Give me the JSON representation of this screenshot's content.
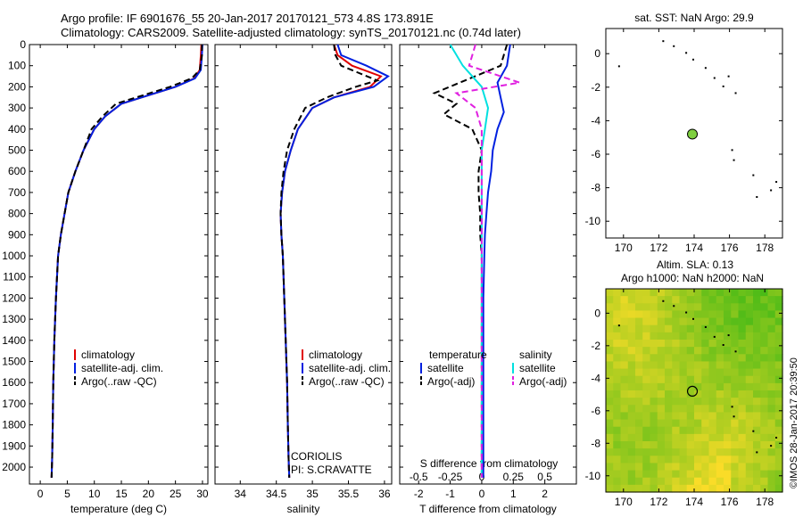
{
  "title_line1": "Argo profile: IF 6901676_55 20-Jan-2017 20170121_573 4.8S 173.891E",
  "title_line2": "Climatology: CARS2009. Satellite-adjusted climatology: synTS_20170121.nc (0.74d later)",
  "timestamp": "©IMOS 28-Jan-2017 20:39:50",
  "colors": {
    "red": "#e00000",
    "blue": "#0020e0",
    "black": "#000000",
    "cyan": "#00e0e0",
    "magenta": "#e020e0"
  },
  "chart_data": [
    {
      "id": "temperature",
      "type": "line",
      "xlabel": "temperature (deg C)",
      "xlim": [
        -2,
        31
      ],
      "ylim": [
        2080,
        0
      ],
      "xticks": [
        0,
        5,
        10,
        15,
        20,
        25,
        30
      ],
      "yticks": [
        0,
        100,
        200,
        300,
        400,
        500,
        600,
        700,
        800,
        900,
        1000,
        1100,
        1200,
        1300,
        1400,
        1500,
        1600,
        1700,
        1800,
        1900,
        2000
      ],
      "legend": [
        "climatology",
        "satellite-adj. clim.",
        "Argo(..raw -QC)"
      ],
      "series": [
        {
          "name": "climatology",
          "color": "red",
          "dash": false,
          "x": [
            29.8,
            29.7,
            29.5,
            28.5,
            25,
            20,
            15,
            12,
            10,
            8,
            6.5,
            5.2,
            4.5,
            3.8,
            3.3,
            2.9,
            2.6,
            2.4,
            2.3,
            2.2,
            2.1
          ],
          "y": [
            0,
            50,
            120,
            160,
            200,
            240,
            280,
            340,
            400,
            500,
            600,
            700,
            800,
            900,
            1000,
            1200,
            1400,
            1600,
            1800,
            1950,
            2050
          ]
        },
        {
          "name": "satellite-adj. clim.",
          "color": "blue",
          "dash": false,
          "x": [
            30,
            29.9,
            29.7,
            28.6,
            25,
            20,
            15,
            12,
            10,
            8,
            6.5,
            5.2,
            4.5,
            3.8,
            3.3,
            2.9,
            2.6,
            2.4,
            2.3,
            2.2,
            2.1
          ],
          "y": [
            0,
            50,
            120,
            160,
            200,
            240,
            280,
            340,
            400,
            500,
            600,
            700,
            800,
            900,
            1000,
            1200,
            1400,
            1600,
            1800,
            1950,
            2050
          ]
        },
        {
          "name": "Argo(..raw -QC)",
          "color": "black",
          "dash": true,
          "x": [
            29.9,
            29.9,
            29.5,
            28,
            24,
            19,
            14,
            11.5,
            9.5,
            8,
            6.5,
            5.2,
            4.5,
            3.8,
            3.3,
            2.9,
            2.6,
            2.4,
            2.3,
            2.2,
            2.1
          ],
          "y": [
            0,
            50,
            120,
            160,
            200,
            240,
            280,
            340,
            400,
            500,
            600,
            700,
            800,
            900,
            1000,
            1200,
            1400,
            1600,
            1800,
            1950,
            2050
          ]
        }
      ]
    },
    {
      "id": "salinity",
      "type": "line",
      "xlabel": "salinity",
      "xlim": [
        33.65,
        36.1
      ],
      "ylim": [
        2080,
        0
      ],
      "xticks": [
        34,
        34.5,
        35,
        35.5,
        36
      ],
      "legend": [
        "climatology",
        "satellite-adj. clim.",
        "Argo(..raw -QC)"
      ],
      "annotation": [
        "CORIOLIS",
        "PI: S.CRAVATTE"
      ],
      "series": [
        {
          "name": "climatology",
          "color": "red",
          "dash": false,
          "x": [
            35.3,
            35.35,
            35.55,
            35.95,
            35.8,
            35.3,
            35.0,
            34.8,
            34.7,
            34.62,
            34.58,
            34.56,
            34.57,
            34.59,
            34.61,
            34.63,
            34.65,
            34.66,
            34.67,
            34.68
          ],
          "y": [
            0,
            50,
            100,
            150,
            200,
            250,
            300,
            400,
            500,
            600,
            700,
            800,
            900,
            1000,
            1200,
            1400,
            1600,
            1800,
            1950,
            2050
          ]
        },
        {
          "name": "satellite-adj. clim.",
          "color": "blue",
          "dash": false,
          "x": [
            35.35,
            35.4,
            35.75,
            36.05,
            35.85,
            35.3,
            35.0,
            34.8,
            34.7,
            34.62,
            34.58,
            34.56,
            34.57,
            34.59,
            34.61,
            34.63,
            34.65,
            34.66,
            34.67,
            34.68
          ],
          "y": [
            0,
            50,
            100,
            150,
            200,
            250,
            300,
            400,
            500,
            600,
            700,
            800,
            900,
            1000,
            1200,
            1400,
            1600,
            1800,
            1950,
            2050
          ]
        },
        {
          "name": "Argo(..raw -QC)",
          "color": "black",
          "dash": true,
          "x": [
            35.3,
            35.32,
            35.4,
            35.9,
            35.6,
            35.2,
            34.9,
            34.75,
            34.65,
            34.6,
            34.57,
            34.56,
            34.57,
            34.59,
            34.61,
            34.63,
            34.65,
            34.66,
            34.67,
            34.68
          ],
          "y": [
            0,
            50,
            100,
            170,
            200,
            250,
            300,
            400,
            500,
            600,
            700,
            800,
            900,
            1000,
            1200,
            1400,
            1600,
            1800,
            1950,
            2050
          ]
        }
      ]
    },
    {
      "id": "difference",
      "type": "line",
      "xlabel": "T difference from climatology",
      "top_label": "S difference from climatology",
      "xlim": [
        -2.6,
        3.0
      ],
      "ylim": [
        2080,
        0
      ],
      "xticks": [
        -2,
        -1,
        0,
        1,
        2
      ],
      "top_ticks": [
        {
          "label": "-0.5",
          "value": -2
        },
        {
          "label": "-0.25",
          "value": -1
        },
        {
          "label": "0",
          "value": 0
        },
        {
          "label": "0.25",
          "value": 1
        },
        {
          "label": "0.5",
          "value": 2
        }
      ],
      "legend_left_title": "temperature",
      "legend_right_title": "salinity",
      "legend": [
        "satellite",
        "Argo(-adj)",
        "satellite",
        "Argo(-adj)"
      ],
      "series": [
        {
          "name": "temperature satellite",
          "color": "blue",
          "dash": false,
          "x": [
            0.9,
            0.8,
            0.5,
            0.6,
            0.7,
            0.5,
            0.35,
            0.3,
            0.2,
            0.15,
            0.1,
            0.08,
            0.05,
            0.05,
            0.05,
            0.05,
            0.05,
            0.05
          ],
          "y": [
            0,
            100,
            180,
            250,
            320,
            400,
            500,
            600,
            700,
            800,
            900,
            1000,
            1200,
            1400,
            1600,
            1800,
            1950,
            2050
          ]
        },
        {
          "name": "temperature Argo(-adj)",
          "color": "black",
          "dash": true,
          "x": [
            0.8,
            0.6,
            -1.5,
            -0.8,
            -1.2,
            -0.3,
            0,
            -0.1,
            -0.1,
            -0.05,
            -0.05,
            0,
            0,
            0,
            0,
            0,
            0,
            0
          ],
          "y": [
            0,
            100,
            230,
            280,
            330,
            400,
            500,
            600,
            700,
            800,
            900,
            1000,
            1200,
            1400,
            1600,
            1800,
            1950,
            2050
          ]
        },
        {
          "name": "salinity satellite",
          "color": "cyan",
          "dash": false,
          "x": [
            -1,
            -0.6,
            0,
            0.2,
            0.1,
            0,
            0,
            0,
            0,
            0,
            0,
            0,
            0,
            0,
            0,
            0,
            0,
            0
          ],
          "y": [
            0,
            100,
            200,
            300,
            400,
            500,
            600,
            700,
            800,
            900,
            1000,
            1100,
            1200,
            1400,
            1600,
            1800,
            1950,
            2050
          ]
        },
        {
          "name": "salinity Argo(-adj)",
          "color": "magenta",
          "dash": true,
          "x": [
            -0.2,
            -0.4,
            1.2,
            -0.8,
            -0.2,
            0,
            0,
            0,
            0,
            0,
            0,
            0,
            0,
            0,
            0,
            0,
            0,
            0
          ],
          "y": [
            0,
            100,
            180,
            230,
            300,
            400,
            500,
            600,
            700,
            800,
            900,
            1000,
            1200,
            1400,
            1600,
            1800,
            1950,
            2050
          ]
        }
      ]
    },
    {
      "id": "sst_map",
      "type": "scatter",
      "title": "sat. SST: NaN Argo: 29.9",
      "xlim": [
        169,
        179
      ],
      "ylim": [
        -11,
        1.5
      ],
      "xticks": [
        170,
        172,
        174,
        176,
        178
      ],
      "yticks": [
        0,
        -2,
        -4,
        -6,
        -8,
        -10
      ],
      "marker": {
        "x": 173.9,
        "y": -4.8
      },
      "coast": [
        [
          172.2,
          0.8
        ],
        [
          172.8,
          0.5
        ],
        [
          173.5,
          0.1
        ],
        [
          173.9,
          -0.3
        ],
        [
          174.6,
          -0.8
        ],
        [
          175.1,
          -1.4
        ],
        [
          175.9,
          -1.3
        ],
        [
          175.6,
          -1.9
        ],
        [
          176.3,
          -2.3
        ],
        [
          169.7,
          -0.7
        ],
        [
          176.1,
          -5.7
        ],
        [
          176.2,
          -6.3
        ],
        [
          177.3,
          -7.2
        ],
        [
          178.3,
          -8.1
        ],
        [
          178.6,
          -7.6
        ],
        [
          177.5,
          -8.5
        ]
      ]
    },
    {
      "id": "sla_map",
      "type": "heatmap",
      "title1": "Altim. SLA: 0.13",
      "title2": "Argo h1000: NaN h2000: NaN",
      "xlim": [
        169,
        179
      ],
      "ylim": [
        -11,
        1.5
      ],
      "xticks": [
        170,
        172,
        174,
        176,
        178
      ],
      "yticks": [
        0,
        -2,
        -4,
        -6,
        -8,
        -10
      ],
      "marker": {
        "x": 173.9,
        "y": -4.8
      }
    }
  ]
}
